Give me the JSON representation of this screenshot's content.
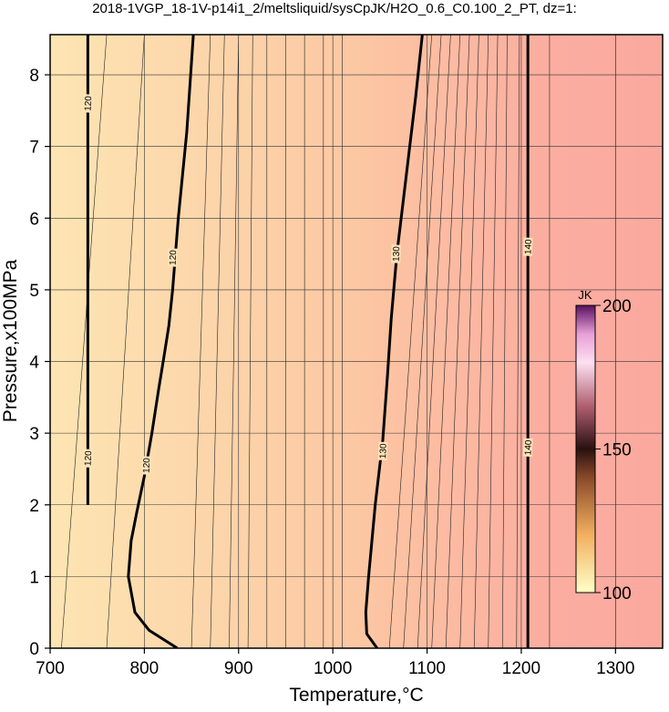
{
  "chart_data": {
    "type": "contour",
    "title": "2018-1VGP_18-1V-p14i1_2/meltsliquid/sysCpJK/H2O_0.6_C0.100_2_PT, dz=1:",
    "x_label": "Temperature,°C",
    "y_label": "Pressure,x100MPa",
    "xlim": [
      700,
      1350
    ],
    "ylim": [
      0,
      8.56
    ],
    "xticks": [
      700,
      800,
      900,
      1000,
      1100,
      1200,
      1300
    ],
    "yticks": [
      0,
      1,
      2,
      3,
      4,
      5,
      6,
      7,
      8
    ],
    "grid": true,
    "contours": [
      {
        "level": 120,
        "x": [
          740,
          740
        ],
        "y": [
          2.0,
          8.56
        ],
        "label_at": [
          [
            740,
            2.65
          ],
          [
            740,
            7.6
          ]
        ]
      },
      {
        "level": 120,
        "x": [
          835,
          805,
          790,
          783,
          786,
          792,
          800,
          808,
          815,
          820,
          826,
          830,
          836,
          845,
          852
        ],
        "y": [
          0,
          0.25,
          0.5,
          1.0,
          1.5,
          1.9,
          2.4,
          3.0,
          3.6,
          4.0,
          4.5,
          5.0,
          6.0,
          7.2,
          8.56
        ],
        "label_at": [
          [
            802,
            2.55
          ],
          [
            830,
            5.45
          ]
        ]
      },
      {
        "level": 130,
        "x": [
          1047,
          1036,
          1035,
          1038,
          1045,
          1053,
          1058,
          1062,
          1068,
          1078,
          1088,
          1095
        ],
        "y": [
          0,
          0.2,
          0.5,
          1.0,
          2.0,
          2.9,
          3.8,
          4.6,
          5.5,
          6.6,
          7.7,
          8.56
        ],
        "label_at": [
          [
            1053,
            2.75
          ],
          [
            1067,
            5.5
          ]
        ]
      },
      {
        "level": 140,
        "x": [
          1207,
          1207
        ],
        "y": [
          0,
          8.56
        ],
        "label_at": [
          [
            1207,
            2.8
          ],
          [
            1207,
            5.6
          ]
        ]
      }
    ],
    "minor_contours": {
      "x_bottom": [
        712,
        760,
        850,
        870,
        890,
        910,
        930,
        950,
        970,
        990,
        1010,
        1060,
        1075,
        1090,
        1105,
        1120,
        1135,
        1150,
        1165,
        1180,
        1195,
        1230,
        1300
      ],
      "x_top": [
        760,
        800,
        870,
        885,
        900,
        915,
        930,
        950,
        970,
        990,
        1010,
        1105,
        1115,
        1125,
        1135,
        1145,
        1155,
        1165,
        1175,
        1185,
        1198,
        1230,
        1300
      ]
    },
    "colorbar": {
      "label": "JK",
      "lim": [
        100,
        200
      ],
      "ticks": [
        100,
        150,
        200
      ]
    }
  }
}
